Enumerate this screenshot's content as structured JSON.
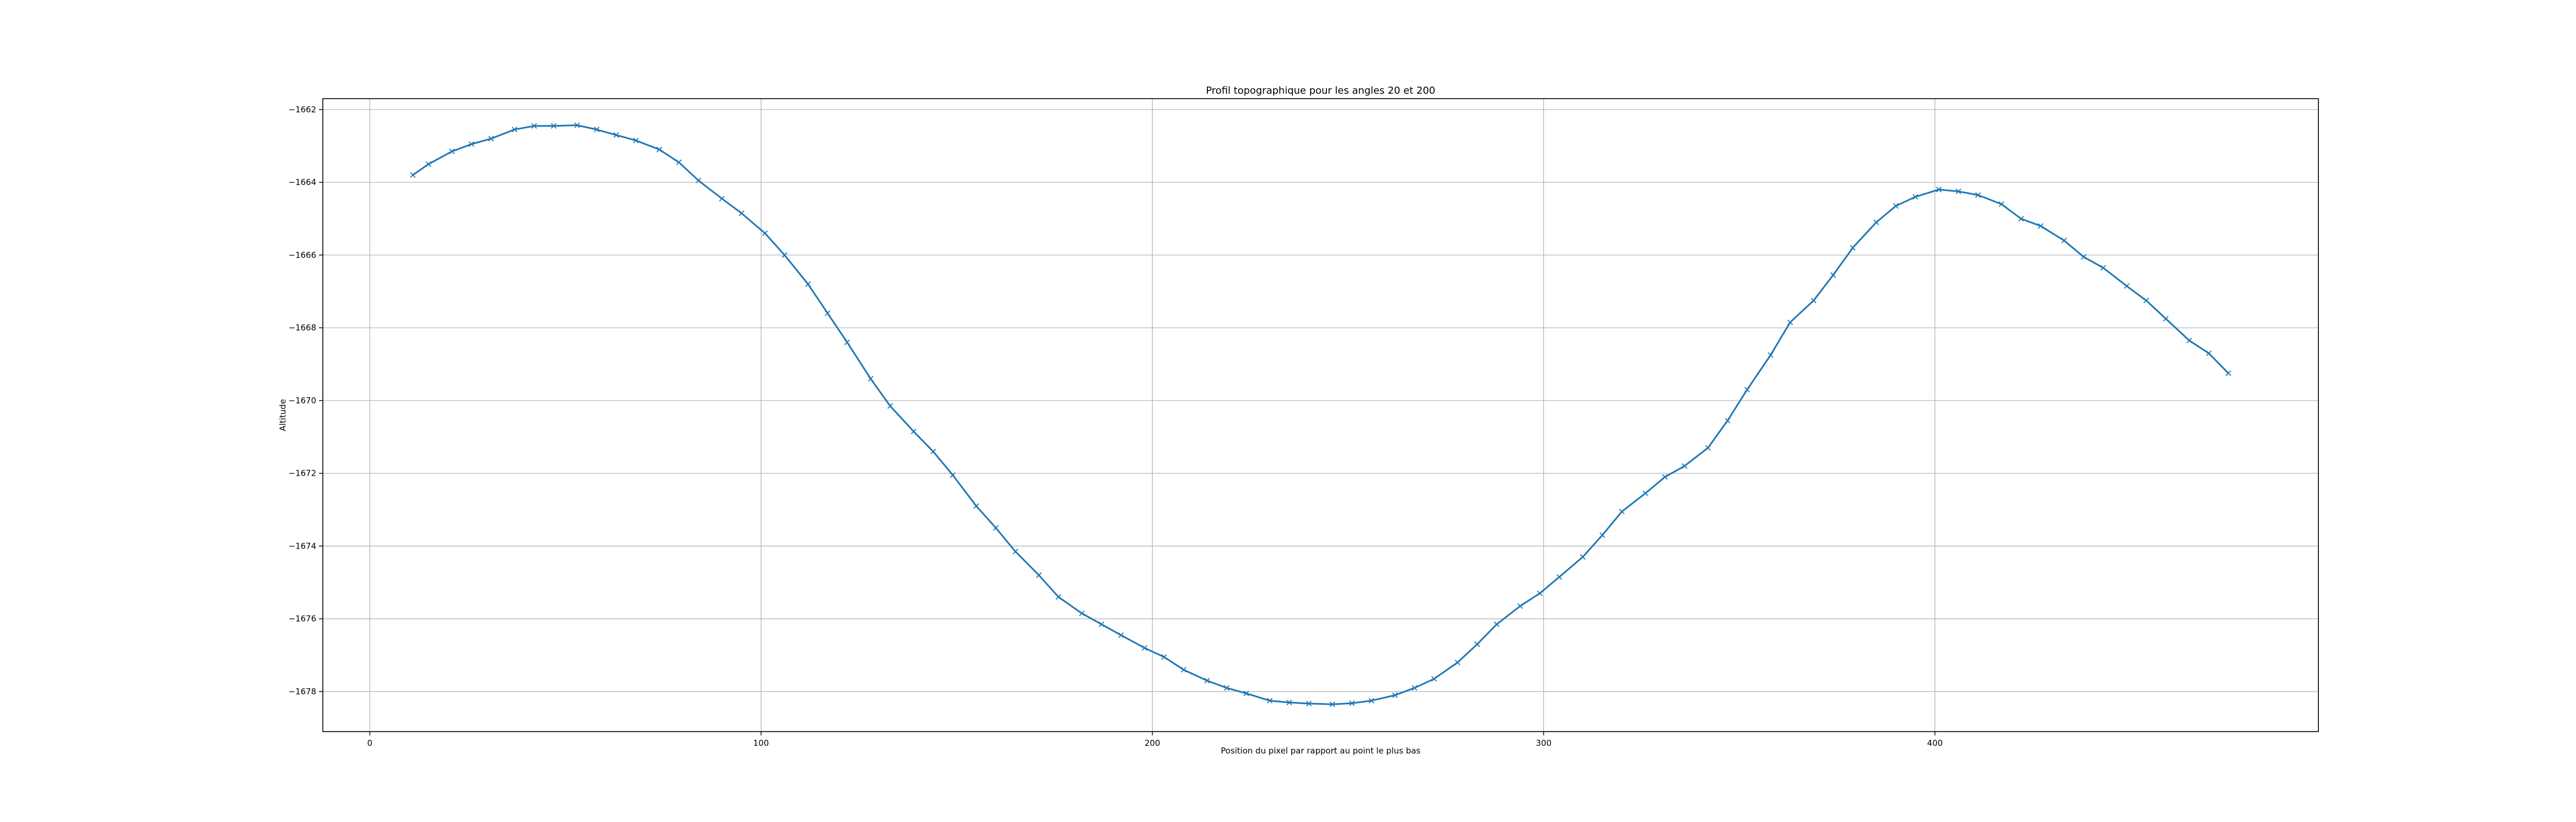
{
  "chart_data": {
    "type": "line",
    "title": "Profil topographique pour les angles 20 et 200",
    "xlabel": "Position du pixel par rapport au point le plus bas",
    "ylabel": "Altitude",
    "xlim": [
      -12,
      498
    ],
    "ylim": [
      -1679.1,
      -1661.7
    ],
    "xticks": [
      0,
      100,
      200,
      300,
      400
    ],
    "xtick_labels": [
      "0",
      "100",
      "200",
      "300",
      "400"
    ],
    "yticks": [
      -1662,
      -1664,
      -1666,
      -1668,
      -1670,
      -1672,
      -1674,
      -1676,
      -1678
    ],
    "ytick_labels": [
      "−1662",
      "−1664",
      "−1666",
      "−1668",
      "−1670",
      "−1672",
      "−1674",
      "−1676",
      "−1678"
    ],
    "grid": true,
    "color": "#1f77b4",
    "marker": "x",
    "series": [
      {
        "x": [
          11,
          15,
          21,
          26,
          31,
          37,
          42,
          47,
          53,
          58,
          63,
          68,
          74,
          79,
          84,
          90,
          95,
          101,
          106,
          112,
          117,
          122,
          128,
          133,
          139,
          144,
          149,
          155,
          160,
          165,
          171,
          176,
          182,
          187,
          192,
          198,
          203,
          208,
          214,
          219,
          224,
          230,
          235,
          240,
          246,
          251,
          256,
          262,
          267,
          272,
          278,
          283,
          288,
          294,
          299,
          304,
          310,
          315,
          320,
          326,
          331,
          336,
          342,
          347,
          352,
          358,
          363,
          369,
          374,
          379,
          385,
          390,
          395,
          401,
          406,
          411,
          417,
          422,
          427,
          433,
          438,
          443,
          449,
          454,
          459,
          465,
          470,
          475
        ],
        "y": [
          -1663.8,
          -1663.5,
          -1663.15,
          -1662.95,
          -1662.8,
          -1662.55,
          -1662.45,
          -1662.45,
          -1662.43,
          -1662.55,
          -1662.7,
          -1662.85,
          -1663.1,
          -1663.45,
          -1663.95,
          -1664.45,
          -1664.85,
          -1665.4,
          -1666.0,
          -1666.8,
          -1667.6,
          -1668.4,
          -1669.4,
          -1670.15,
          -1670.85,
          -1671.4,
          -1672.05,
          -1672.9,
          -1673.5,
          -1674.15,
          -1674.8,
          -1675.4,
          -1675.85,
          -1676.15,
          -1676.45,
          -1676.8,
          -1677.05,
          -1677.4,
          -1677.7,
          -1677.9,
          -1678.05,
          -1678.25,
          -1678.3,
          -1678.33,
          -1678.35,
          -1678.32,
          -1678.25,
          -1678.1,
          -1677.9,
          -1677.65,
          -1677.2,
          -1676.7,
          -1676.15,
          -1675.65,
          -1675.3,
          -1674.85,
          -1674.3,
          -1673.7,
          -1673.05,
          -1672.55,
          -1672.1,
          -1671.8,
          -1671.3,
          -1670.55,
          -1669.7,
          -1668.75,
          -1667.85,
          -1667.25,
          -1666.55,
          -1665.8,
          -1665.1,
          -1664.65,
          -1664.4,
          -1664.2,
          -1664.25,
          -1664.35,
          -1664.6,
          -1665.0,
          -1665.2,
          -1665.6,
          -1666.05,
          -1666.35,
          -1666.85,
          -1667.25,
          -1667.75,
          -1668.35,
          -1668.7,
          -1669.25
        ]
      }
    ]
  }
}
